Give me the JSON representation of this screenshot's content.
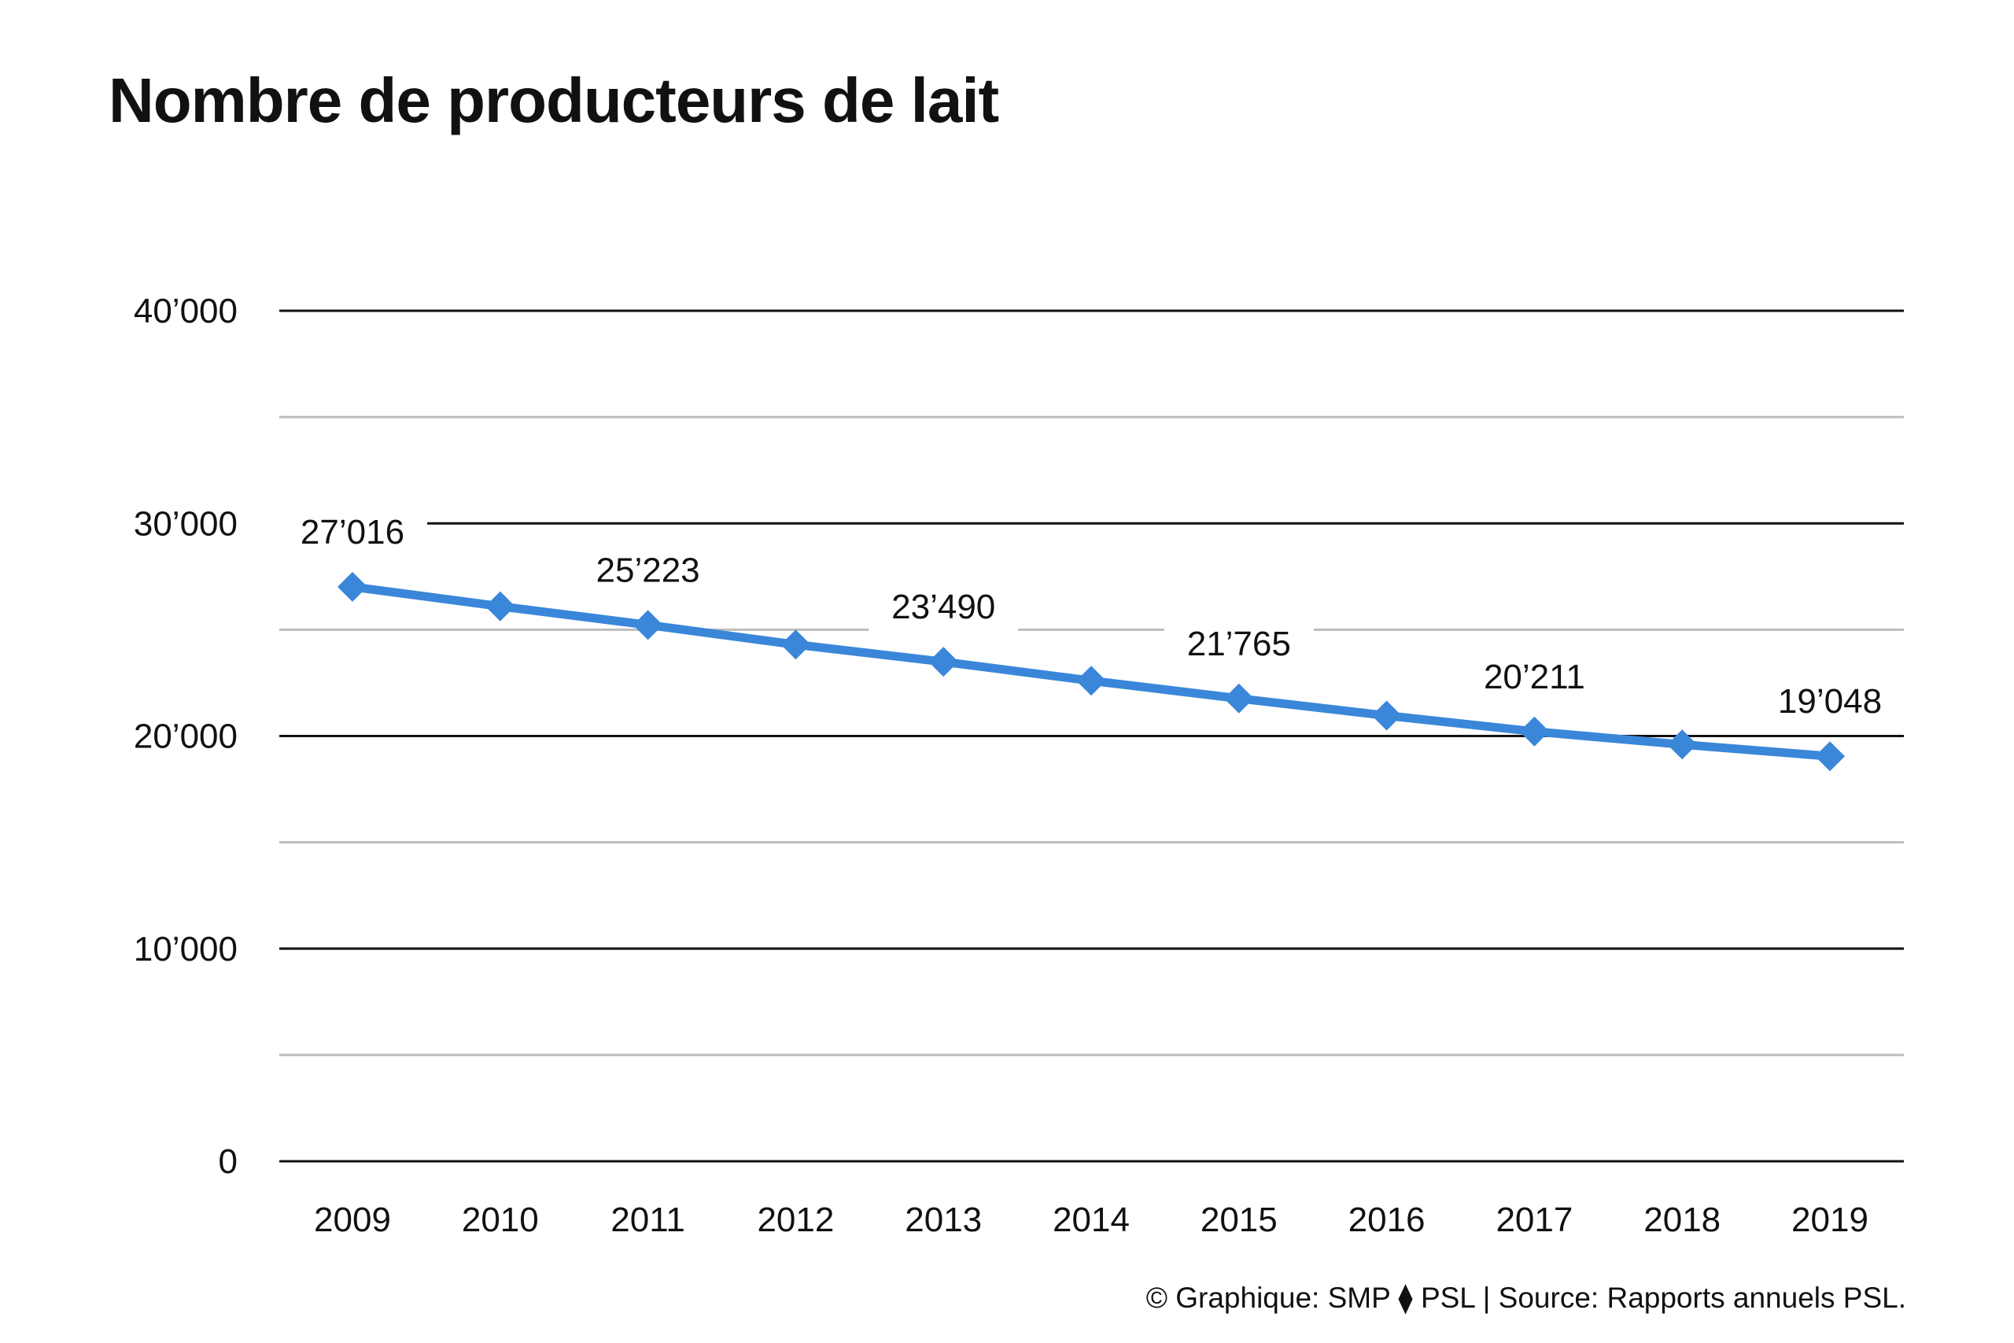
{
  "chart_data": {
    "type": "line",
    "title": "Nombre de producteurs de lait",
    "xlabel": "",
    "ylabel": "",
    "categories": [
      "2009",
      "2010",
      "2011",
      "2012",
      "2013",
      "2014",
      "2015",
      "2016",
      "2017",
      "2018",
      "2019"
    ],
    "series": [
      {
        "values": [
          27016,
          26100,
          25223,
          24300,
          23490,
          22600,
          21765,
          20960,
          20211,
          19600,
          19048
        ],
        "color": "#3a87d9",
        "marker": "diamond"
      }
    ],
    "data_labels": [
      {
        "category": "2009",
        "text": "27’016"
      },
      {
        "category": "2011",
        "text": "25’223"
      },
      {
        "category": "2013",
        "text": "23’490"
      },
      {
        "category": "2015",
        "text": "21’765"
      },
      {
        "category": "2017",
        "text": "20’211"
      },
      {
        "category": "2019",
        "text": "19’048"
      }
    ],
    "yticks": [
      {
        "value": 0,
        "label": "0"
      },
      {
        "value": 10000,
        "label": "10’000"
      },
      {
        "value": 20000,
        "label": "20’000"
      },
      {
        "value": 30000,
        "label": "30’000"
      },
      {
        "value": 40000,
        "label": "40’000"
      }
    ],
    "minor_gridlines": [
      5000,
      15000,
      25000,
      35000
    ],
    "ylim": [
      0,
      40000
    ],
    "grid": true,
    "legend": "none",
    "colors": {
      "line": "#3a87d9",
      "major_grid": "#111111",
      "minor_grid": "#bdbdbd",
      "text": "#111111"
    }
  },
  "footer": {
    "credit": "© Graphique: SMP ⧫ PSL | Source: Rapports annuels PSL."
  }
}
